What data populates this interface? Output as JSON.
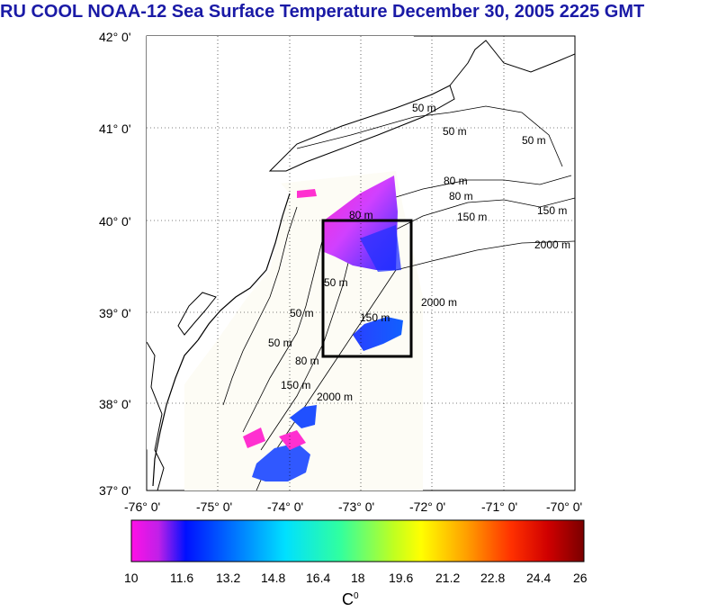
{
  "title": "RU COOL  NOAA-12 Sea Surface Temperature December 30, 2005 2225 GMT",
  "lat_labels": [
    "42° 0'",
    "41° 0'",
    "40° 0'",
    "39° 0'",
    "38° 0'",
    "37° 0'"
  ],
  "lon_labels": [
    "-76° 0'",
    "-75° 0'",
    "-74° 0'",
    "-73° 0'",
    "-72° 0'",
    "-71° 0'",
    "-70° 0'"
  ],
  "contour_labels": [
    "50 m",
    "50 m",
    "50 m",
    "80 m",
    "80 m",
    "80 m",
    "150 m",
    "150 m",
    "150 m",
    "150 m",
    "2000 m",
    "2000 m",
    "2000 m",
    "50 m",
    "50 m",
    "50 m",
    "80 m"
  ],
  "colorbar": {
    "ticks": [
      "10",
      "11.6",
      "13.2",
      "14.8",
      "16.4",
      "18",
      "19.6",
      "21.2",
      "22.8",
      "24.4",
      "26"
    ],
    "unit_base": "C",
    "unit_sup": "0"
  },
  "colors": {
    "title": "#1a1aa6",
    "land": "#ffffff",
    "no_data": "#fdfdf6"
  }
}
